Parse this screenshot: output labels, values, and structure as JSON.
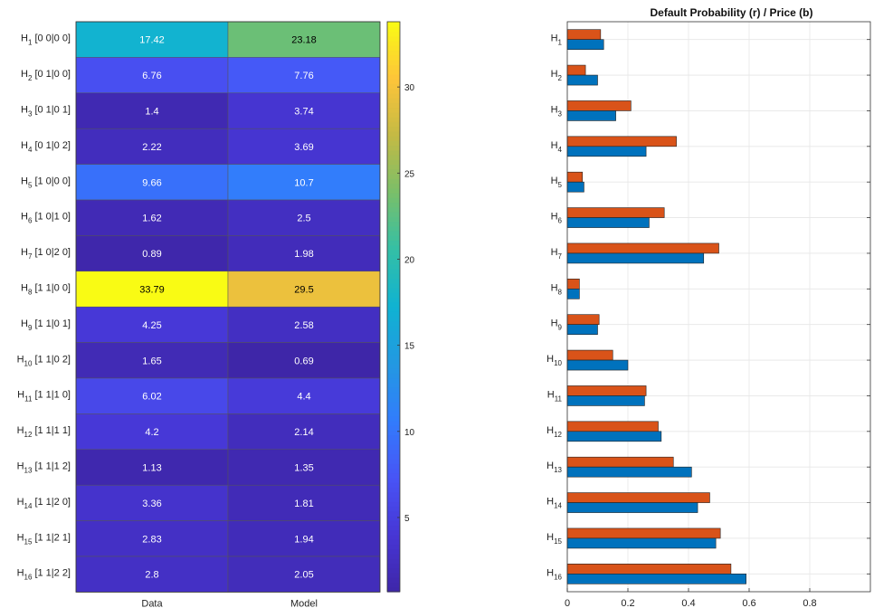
{
  "chart_data": [
    {
      "type": "heatmap",
      "columns": [
        "Data",
        "Model"
      ],
      "rows": [
        {
          "sub": "1",
          "code": "[0 0|0 0]",
          "values": [
            17.42,
            23.18
          ]
        },
        {
          "sub": "2",
          "code": "[0 1|0 0]",
          "values": [
            6.76,
            7.76
          ]
        },
        {
          "sub": "3",
          "code": "[0 1|0 1]",
          "values": [
            1.4,
            3.74
          ]
        },
        {
          "sub": "4",
          "code": "[0 1|0 2]",
          "values": [
            2.22,
            3.69
          ]
        },
        {
          "sub": "5",
          "code": "[1 0|0 0]",
          "values": [
            9.66,
            10.7
          ]
        },
        {
          "sub": "6",
          "code": "[1 0|1 0]",
          "values": [
            1.62,
            2.5
          ]
        },
        {
          "sub": "7",
          "code": "[1 0|2 0]",
          "values": [
            0.89,
            1.98
          ]
        },
        {
          "sub": "8",
          "code": "[1 1|0 0]",
          "values": [
            33.79,
            29.5
          ]
        },
        {
          "sub": "9",
          "code": "[1 1|0 1]",
          "values": [
            4.25,
            2.58
          ]
        },
        {
          "sub": "10",
          "code": "[1 1|0 2]",
          "values": [
            1.65,
            0.69
          ]
        },
        {
          "sub": "11",
          "code": "[1 1|1 0]",
          "values": [
            6.02,
            4.4
          ]
        },
        {
          "sub": "12",
          "code": "[1 1|1 1]",
          "values": [
            4.2,
            2.14
          ]
        },
        {
          "sub": "13",
          "code": "[1 1|1 2]",
          "values": [
            1.13,
            1.35
          ]
        },
        {
          "sub": "14",
          "code": "[1 1|2 0]",
          "values": [
            3.36,
            1.81
          ]
        },
        {
          "sub": "15",
          "code": "[1 1|2 1]",
          "values": [
            2.83,
            1.94
          ]
        },
        {
          "sub": "16",
          "code": "[1 1|2 2]",
          "values": [
            2.8,
            2.05
          ]
        }
      ],
      "colormap": "parula",
      "colorbar": {
        "min": 0.69,
        "max": 33.79,
        "ticks": [
          5,
          10,
          15,
          20,
          25,
          30
        ]
      }
    },
    {
      "type": "bar",
      "orientation": "horizontal",
      "title": "Default Probability (r) / Price (b)",
      "categories": [
        "1",
        "2",
        "3",
        "4",
        "5",
        "6",
        "7",
        "8",
        "9",
        "10",
        "11",
        "12",
        "13",
        "14",
        "15",
        "16"
      ],
      "category_prefix": "H",
      "series": [
        {
          "color": "#D95319",
          "values": [
            0.11,
            0.06,
            0.21,
            0.36,
            0.05,
            0.32,
            0.5,
            0.04,
            0.105,
            0.15,
            0.26,
            0.3,
            0.35,
            0.47,
            0.505,
            0.54
          ]
        },
        {
          "color": "#0072BD",
          "values": [
            0.12,
            0.1,
            0.16,
            0.26,
            0.055,
            0.27,
            0.45,
            0.04,
            0.1,
            0.2,
            0.255,
            0.31,
            0.41,
            0.43,
            0.49,
            0.59
          ]
        }
      ],
      "xlim": [
        0,
        1
      ],
      "xticks": [
        "0",
        "0.2",
        "0.4",
        "0.6",
        "0.8"
      ],
      "grid": true
    }
  ]
}
